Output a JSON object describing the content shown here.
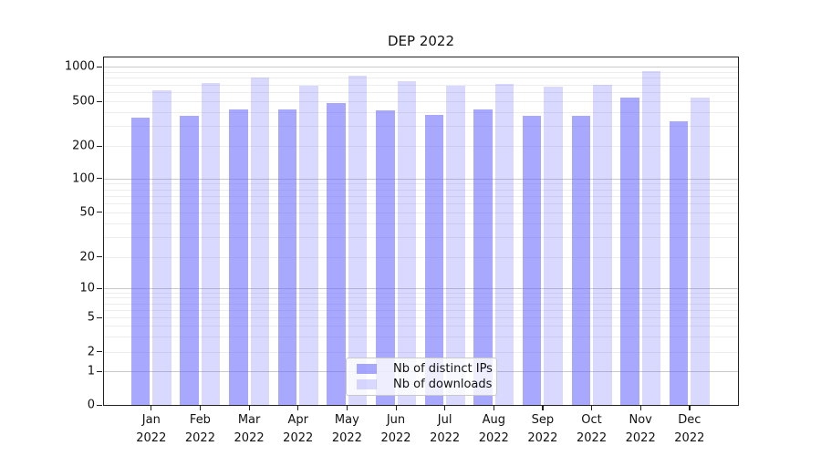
{
  "chart_data": {
    "type": "bar",
    "title": "DEP 2022",
    "categories": [
      "Jan",
      "Feb",
      "Mar",
      "Apr",
      "May",
      "Jun",
      "Jul",
      "Aug",
      "Sep",
      "Oct",
      "Nov",
      "Dec"
    ],
    "category_year": "2022",
    "series": [
      {
        "name": "Nb of distinct IPs",
        "color": "rgba(102,102,255,0.57)",
        "values": [
          355,
          370,
          420,
          425,
          485,
          412,
          375,
          420,
          368,
          368,
          537,
          332
        ]
      },
      {
        "name": "Nb of downloads",
        "color": "rgba(102,102,255,0.25)",
        "values": [
          620,
          720,
          810,
          680,
          840,
          748,
          682,
          712,
          672,
          702,
          918,
          538
        ]
      }
    ],
    "yscale": "symlog",
    "yticks": [
      0,
      1,
      2,
      5,
      10,
      20,
      50,
      100,
      200,
      500,
      1000
    ],
    "ylim": [
      0,
      1236
    ],
    "grid": true,
    "legend_position": "lower center",
    "colors": {
      "major_grid": "#c9c9c9",
      "minor_grid": "#ededed",
      "spine": "#222222"
    }
  }
}
